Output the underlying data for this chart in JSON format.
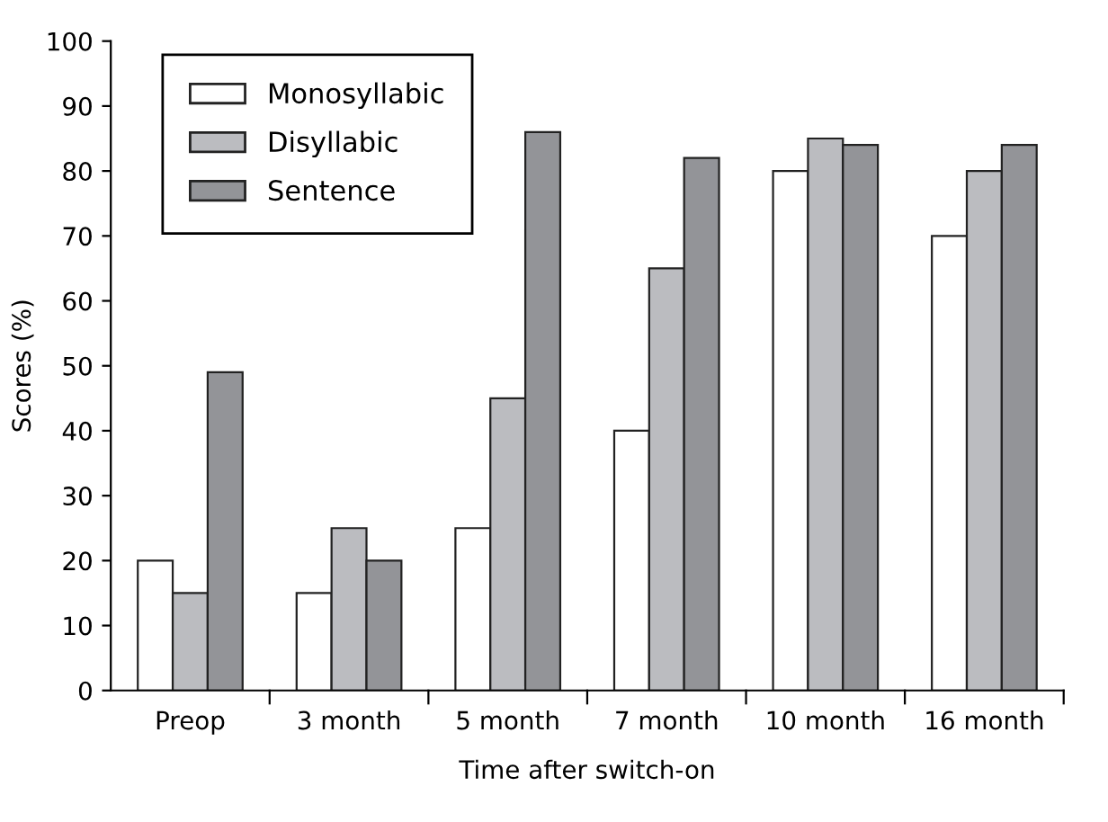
{
  "chart_data": {
    "type": "bar",
    "xlabel": "Time after switch-on",
    "ylabel": "Scores (%)",
    "categories": [
      "Preop",
      "3 month",
      "5 month",
      "7 month",
      "10 month",
      "16 month"
    ],
    "series": [
      {
        "name": "Monosyllabic",
        "color": "#ffffff",
        "values": [
          20,
          15,
          25,
          40,
          80,
          70
        ]
      },
      {
        "name": "Disyllabic",
        "color": "#bbbcc0",
        "values": [
          15,
          25,
          45,
          65,
          85,
          80
        ]
      },
      {
        "name": "Sentence",
        "color": "#939498",
        "values": [
          49,
          20,
          86,
          82,
          84,
          84
        ]
      }
    ],
    "ylim": [
      0,
      100
    ],
    "yticks": [
      0,
      10,
      20,
      30,
      40,
      50,
      60,
      70,
      80,
      90,
      100
    ],
    "grid": false,
    "legend": "top left"
  }
}
